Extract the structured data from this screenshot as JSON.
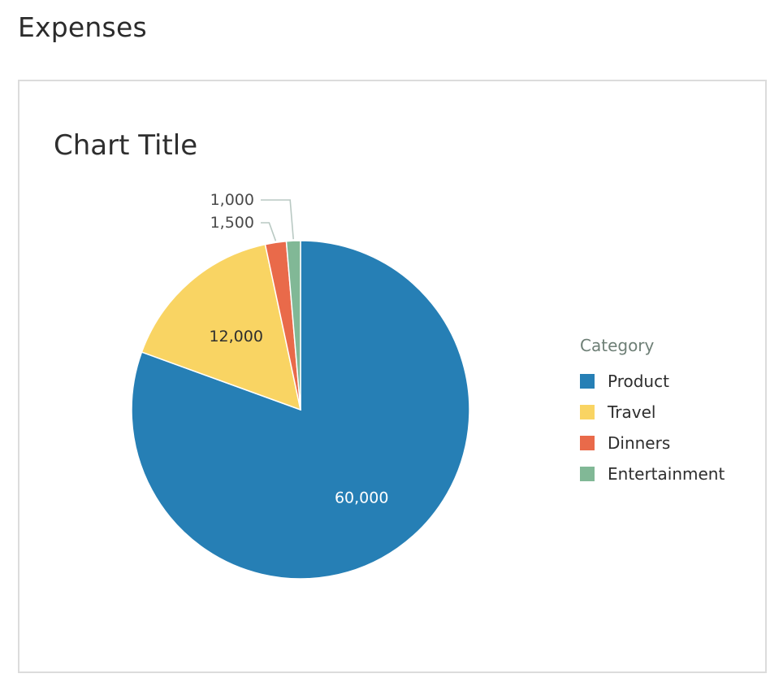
{
  "page": {
    "heading": "Expenses"
  },
  "chart_data": {
    "type": "pie",
    "title": "Chart Title",
    "legend_title": "Category",
    "legend_position": "right",
    "categories": [
      "Product",
      "Travel",
      "Dinners",
      "Entertainment"
    ],
    "values": [
      60000,
      12000,
      1500,
      1000
    ],
    "value_labels": [
      "60,000",
      "12,000",
      "1,500",
      "1,000"
    ],
    "colors": [
      "#267fb5",
      "#f9d463",
      "#e96a4a",
      "#81b896"
    ],
    "label_colors": [
      "#ffffff",
      "#2e2e2e",
      "#4a4a4a",
      "#4a4a4a"
    ],
    "label_placement": [
      "inside",
      "inside",
      "outside",
      "outside"
    ]
  }
}
